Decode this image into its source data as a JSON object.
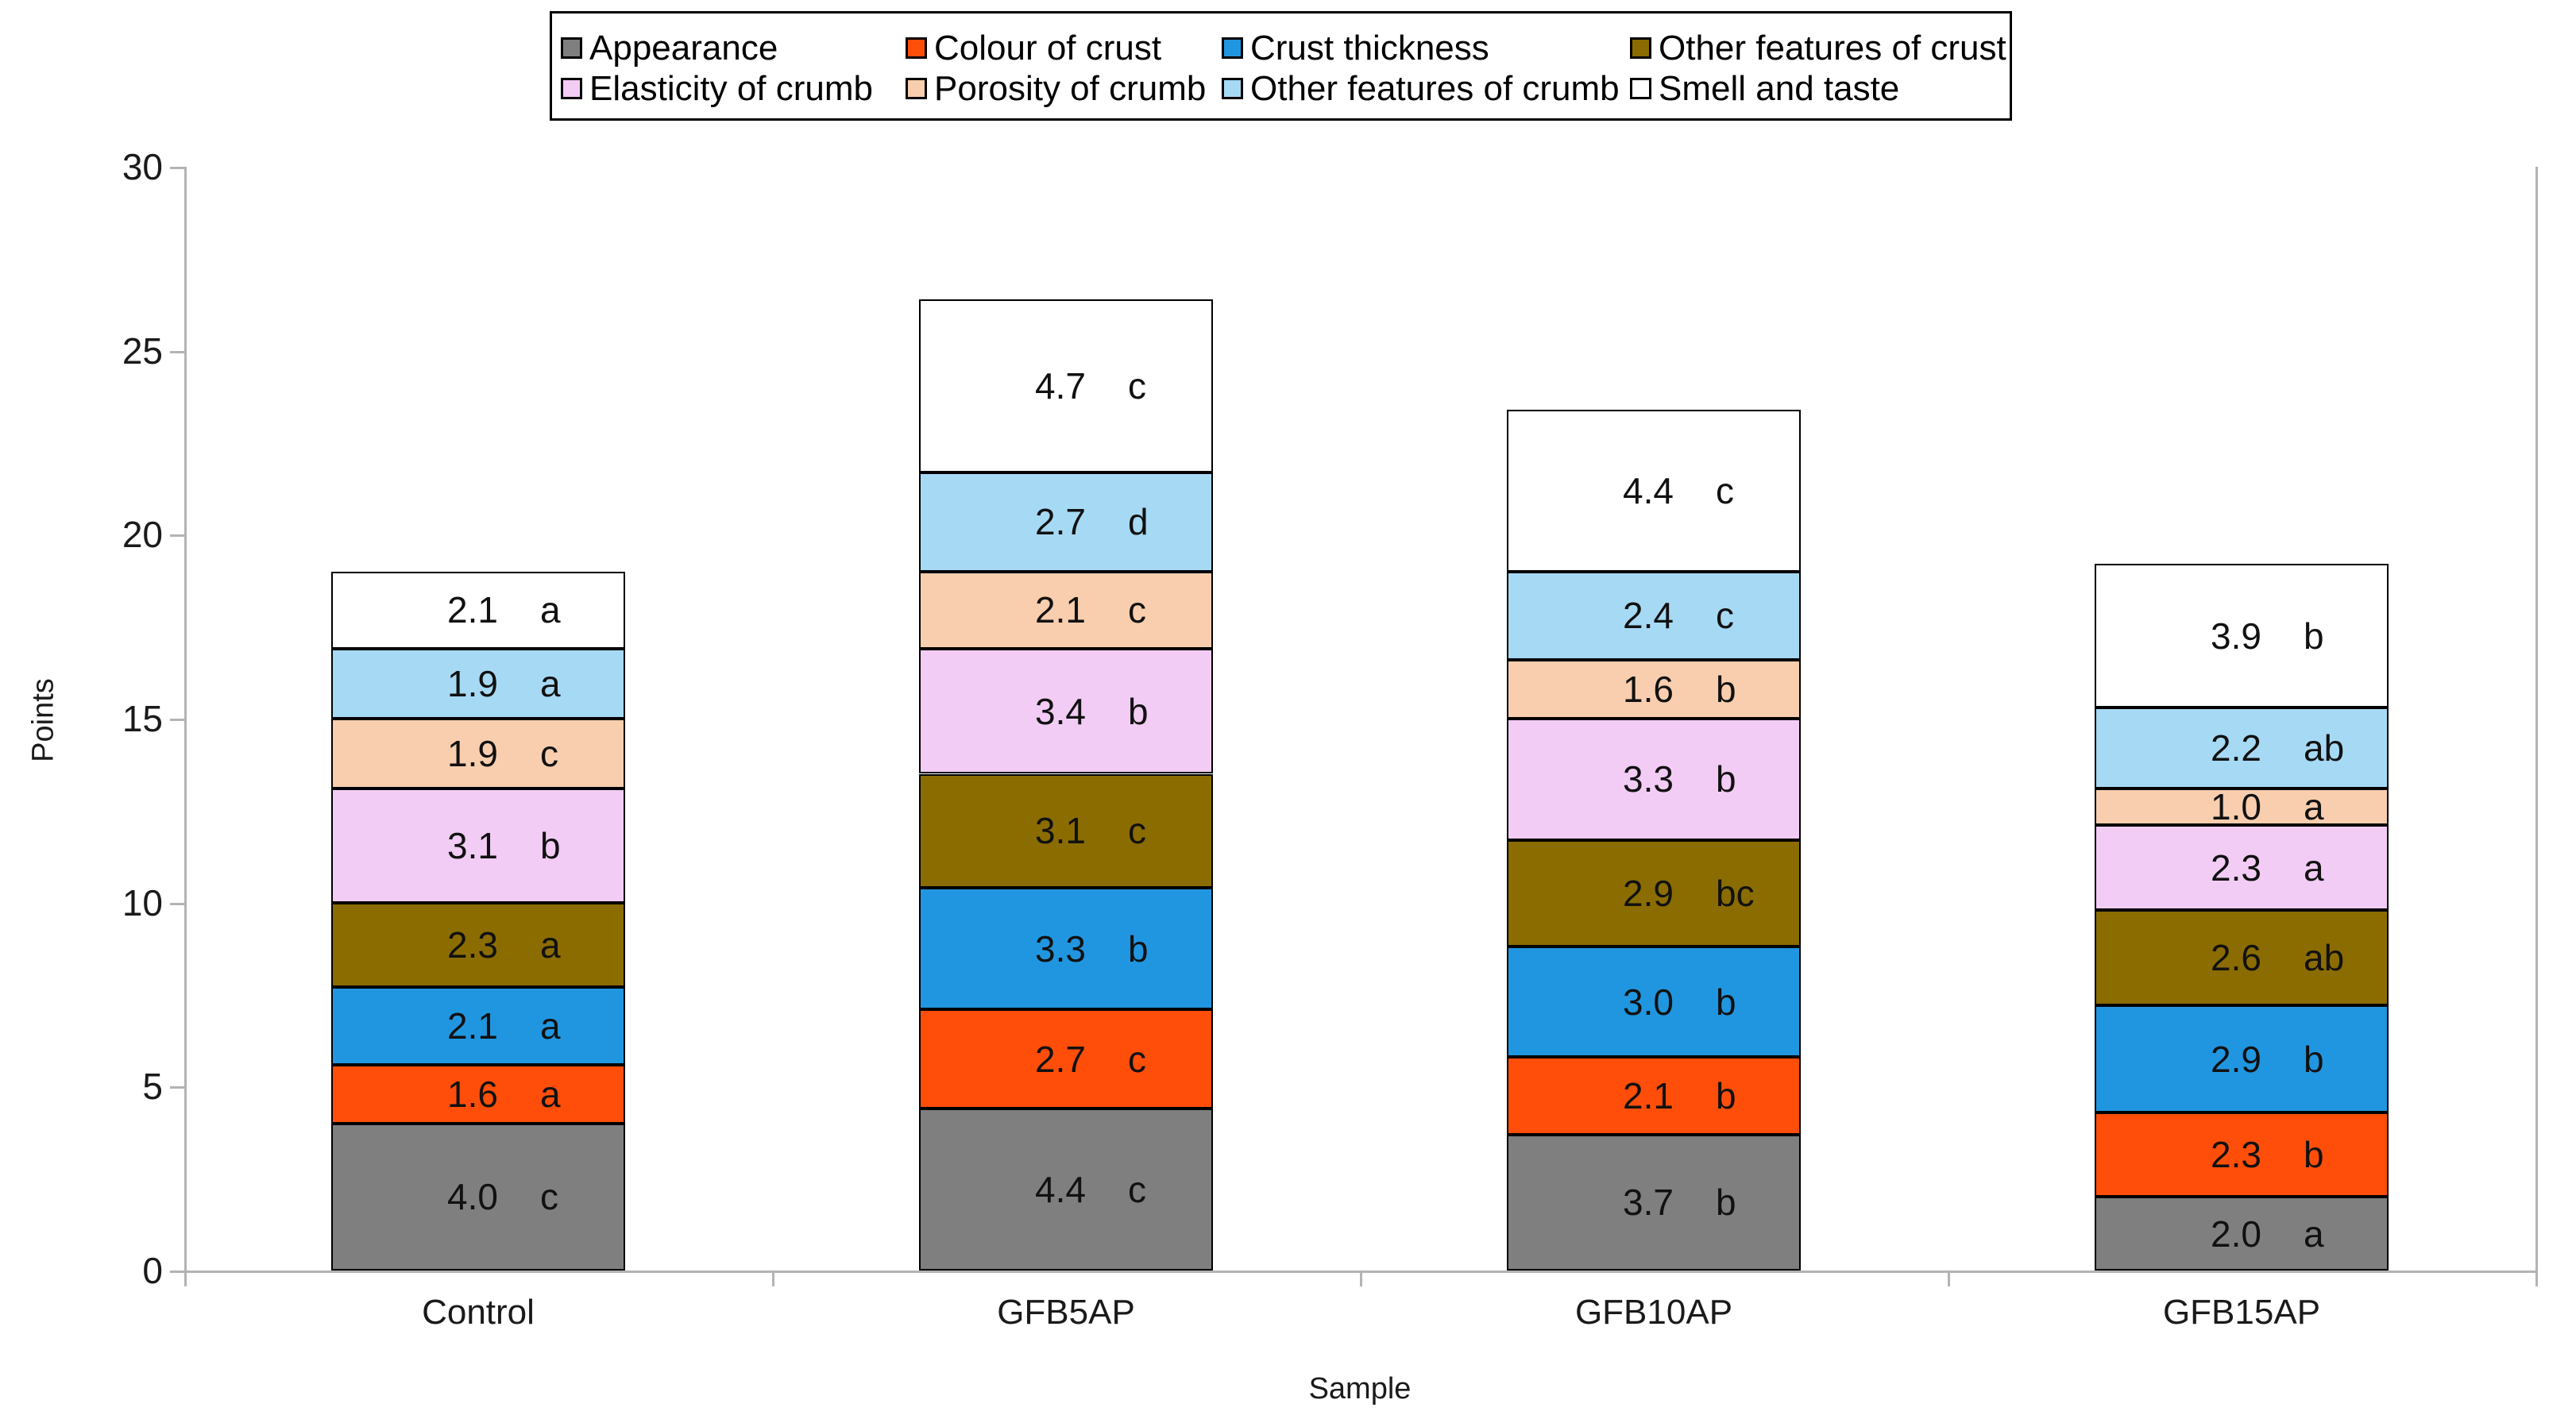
{
  "chart_data": {
    "type": "bar",
    "stacked": true,
    "xlabel": "Sample",
    "ylabel": "Points",
    "ylim": [
      0,
      30
    ],
    "yticks": [
      0,
      5,
      10,
      15,
      20,
      25,
      30
    ],
    "legend_position": "top",
    "legend_rows": 2,
    "value_decimals": 1,
    "categories": [
      "Control",
      "GFB5AP",
      "GFB10AP",
      "GFB15AP"
    ],
    "series": [
      {
        "name": "Appearance",
        "color": "#7F7F7F",
        "values": [
          4.0,
          4.4,
          3.7,
          2.0
        ],
        "sig_letters": [
          "c",
          "c",
          "b",
          "a"
        ]
      },
      {
        "name": "Colour of crust",
        "color": "#FF4E0A",
        "values": [
          1.6,
          2.7,
          2.1,
          2.3
        ],
        "sig_letters": [
          "a",
          "c",
          "b",
          "b"
        ]
      },
      {
        "name": "Crust thickness",
        "color": "#2196E0",
        "values": [
          2.1,
          3.3,
          3.0,
          2.9
        ],
        "sig_letters": [
          "a",
          "b",
          "b",
          "b"
        ]
      },
      {
        "name": "Other features of crust",
        "color": "#8B6C00",
        "values": [
          2.3,
          3.1,
          2.9,
          2.6
        ],
        "sig_letters": [
          "a",
          "c",
          "bc",
          "ab"
        ]
      },
      {
        "name": "Elasticity of crumb",
        "color": "#F2CCF5",
        "values": [
          3.1,
          3.4,
          3.3,
          2.3
        ],
        "sig_letters": [
          "b",
          "b",
          "b",
          "a"
        ]
      },
      {
        "name": "Porosity of crumb",
        "color": "#F8CEAE",
        "values": [
          1.9,
          2.1,
          1.6,
          1.0
        ],
        "sig_letters": [
          "c",
          "c",
          "b",
          "a"
        ]
      },
      {
        "name": "Other features of crumb",
        "color": "#A6D9F4",
        "values": [
          1.9,
          2.7,
          2.4,
          2.2
        ],
        "sig_letters": [
          "a",
          "d",
          "c",
          "ab"
        ]
      },
      {
        "name": "Smell and taste",
        "color": "#FFFFFF",
        "values": [
          2.1,
          4.7,
          4.4,
          3.9
        ],
        "sig_letters": [
          "a",
          "c",
          "c",
          "b"
        ]
      }
    ]
  },
  "colors": {
    "axis_line": "#B3B3B3",
    "tick_label": "#1A1A1A",
    "segment_border": "#000000",
    "legend_border": "#000000",
    "label_text": "#111111",
    "background": "#FFFFFF"
  }
}
